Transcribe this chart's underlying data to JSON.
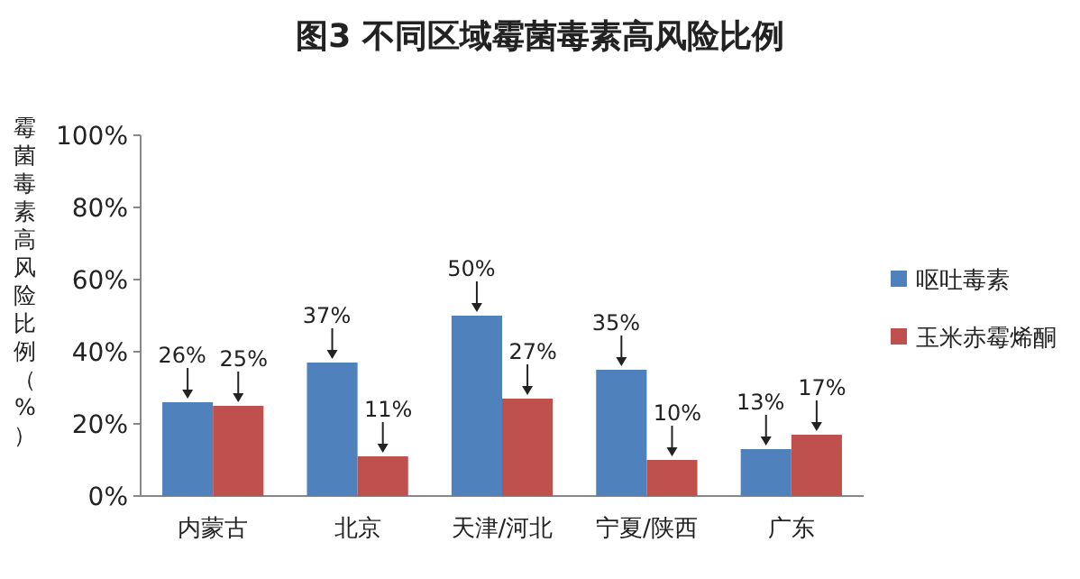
{
  "chart_data": {
    "type": "bar",
    "title": "图3  不同区域霉菌毒素高风险比例",
    "ylabel": "霉菌毒素高风险比例（%）",
    "categories": [
      "内蒙古",
      "北京",
      "天津/河北",
      "宁夏/陕西",
      "广东"
    ],
    "series": [
      {
        "name": "呕吐毒素",
        "color": "#4f81bd",
        "values": [
          26,
          37,
          50,
          35,
          13
        ],
        "value_labels": [
          "26%",
          "37%",
          "50%",
          "35%",
          "13%"
        ]
      },
      {
        "name": "玉米赤霉烯酮",
        "color": "#c0504d",
        "values": [
          25,
          11,
          27,
          10,
          17
        ],
        "value_labels": [
          "25%",
          "11%",
          "27%",
          "10%",
          "17%"
        ]
      }
    ],
    "ylim": [
      0,
      100
    ],
    "yticks": [
      {
        "value": 0,
        "label": "0%"
      },
      {
        "value": 20,
        "label": "20%"
      },
      {
        "value": 40,
        "label": "40%"
      },
      {
        "value": 60,
        "label": "60%"
      },
      {
        "value": 80,
        "label": "80%"
      },
      {
        "value": 100,
        "label": "100%"
      }
    ],
    "legend": "right",
    "grid": false
  }
}
